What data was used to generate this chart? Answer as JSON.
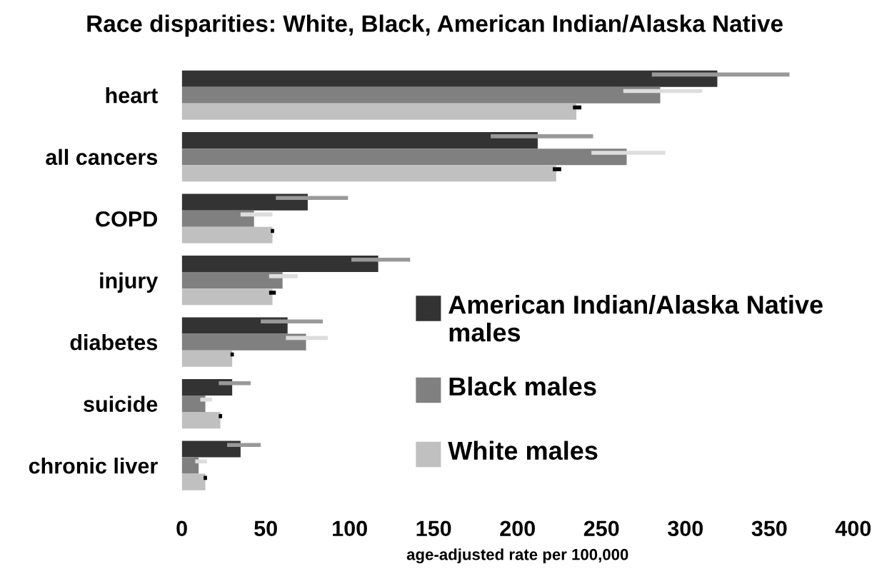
{
  "chart_data": {
    "type": "bar",
    "orientation": "horizontal",
    "title": "Race disparities: White, Black, American Indian/Alaska Native",
    "xlabel": "age-adjusted rate per 100,000",
    "categories": [
      "heart",
      "all cancers",
      "COPD",
      "injury",
      "diabetes",
      "suicide",
      "chronic liver"
    ],
    "series": [
      {
        "name": "American Indian/Alaska Native males",
        "color": "#333333",
        "values": [
          319,
          212,
          75,
          117,
          63,
          30,
          35
        ],
        "errors": [
          [
            280,
            362
          ],
          [
            184,
            245
          ],
          [
            56,
            99
          ],
          [
            101,
            136
          ],
          [
            47,
            84
          ],
          [
            22,
            41
          ],
          [
            27,
            47
          ]
        ]
      },
      {
        "name": "Black males",
        "color": "#808080",
        "values": [
          285,
          265,
          43,
          60,
          74,
          14,
          10
        ],
        "errors": [
          [
            263,
            310
          ],
          [
            244,
            288
          ],
          [
            35,
            54
          ],
          [
            52,
            69
          ],
          [
            62,
            87
          ],
          [
            11,
            18
          ],
          [
            8,
            15
          ]
        ]
      },
      {
        "name": "White males",
        "color": "#c0c0c0",
        "values": [
          235,
          223,
          54,
          54,
          30,
          23,
          14
        ],
        "errors": [
          [
            233,
            238
          ],
          [
            221,
            226
          ],
          [
            53,
            55
          ],
          [
            52,
            56
          ],
          [
            29,
            31
          ],
          [
            22,
            24
          ],
          [
            13,
            15
          ]
        ]
      }
    ],
    "xlim": [
      0,
      400
    ],
    "xticks": [
      0,
      50,
      100,
      150,
      200,
      250,
      300,
      350,
      400
    ],
    "grid": false,
    "legend": "right"
  }
}
